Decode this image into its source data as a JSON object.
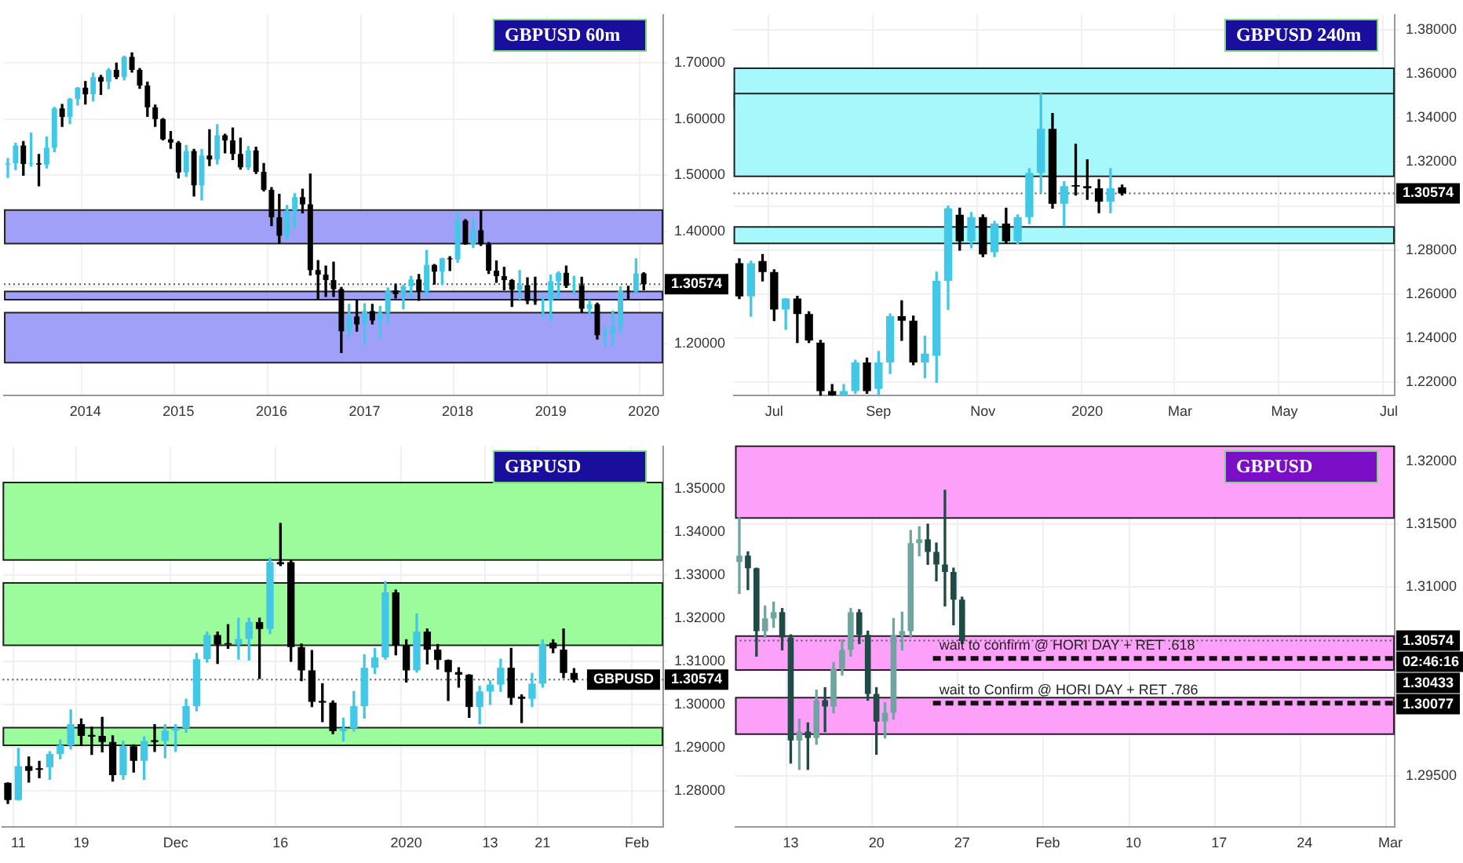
{
  "chart_data": [
    {
      "type": "candlestick",
      "title": "GBPUSD 60m",
      "grid": true,
      "categories": [
        null,
        null,
        null,
        null,
        null,
        null,
        null,
        null,
        null,
        null,
        "2014",
        null,
        null,
        null,
        null,
        null,
        null,
        null,
        null,
        null,
        null,
        null,
        "2015",
        null,
        null,
        null,
        null,
        null,
        null,
        null,
        null,
        null,
        null,
        null,
        "2016",
        null,
        null,
        null,
        null,
        null,
        null,
        null,
        null,
        null,
        null,
        null,
        "2017",
        null,
        null,
        null,
        null,
        null,
        null,
        null,
        null,
        null,
        null,
        null,
        "2018",
        null,
        null,
        null,
        null,
        null,
        null,
        null,
        null,
        null,
        null,
        null,
        "2019",
        null,
        null,
        null,
        null,
        null,
        null,
        null,
        null,
        null,
        null,
        null,
        "2020",
        null,
        null
      ],
      "ohlc": [
        [
          1.519,
          1.53,
          1.496,
          1.521
        ],
        [
          1.521,
          1.557,
          1.51,
          1.553
        ],
        [
          1.553,
          1.56,
          1.5,
          1.52
        ],
        [
          1.52,
          1.575,
          1.516,
          1.521
        ],
        [
          1.521,
          1.537,
          1.481,
          1.519
        ],
        [
          1.519,
          1.568,
          1.513,
          1.549
        ],
        [
          1.549,
          1.621,
          1.542,
          1.619
        ],
        [
          1.619,
          1.626,
          1.587,
          1.604
        ],
        [
          1.604,
          1.637,
          1.592,
          1.636
        ],
        [
          1.636,
          1.656,
          1.625,
          1.656
        ],
        [
          1.656,
          1.667,
          1.627,
          1.644
        ],
        [
          1.644,
          1.682,
          1.632,
          1.675
        ],
        [
          1.675,
          1.678,
          1.644,
          1.667
        ],
        [
          1.667,
          1.69,
          1.654,
          1.688
        ],
        [
          1.688,
          1.7,
          1.672,
          1.675
        ],
        [
          1.675,
          1.712,
          1.67,
          1.711
        ],
        [
          1.711,
          1.718,
          1.684,
          1.688
        ],
        [
          1.688,
          1.69,
          1.655,
          1.66
        ],
        [
          1.66,
          1.666,
          1.605,
          1.621
        ],
        [
          1.621,
          1.625,
          1.587,
          1.6
        ],
        [
          1.6,
          1.601,
          1.563,
          1.564
        ],
        [
          1.564,
          1.578,
          1.548,
          1.558
        ],
        [
          1.558,
          1.56,
          1.495,
          1.505
        ],
        [
          1.505,
          1.553,
          1.498,
          1.543
        ],
        [
          1.543,
          1.546,
          1.463,
          1.482
        ],
        [
          1.482,
          1.546,
          1.456,
          1.535
        ],
        [
          1.535,
          1.581,
          1.517,
          1.528
        ],
        [
          1.528,
          1.59,
          1.52,
          1.571
        ],
        [
          1.571,
          1.573,
          1.54,
          1.562
        ],
        [
          1.562,
          1.584,
          1.528,
          1.538
        ],
        [
          1.538,
          1.566,
          1.511,
          1.514
        ],
        [
          1.514,
          1.551,
          1.51,
          1.544
        ],
        [
          1.544,
          1.55,
          1.503,
          1.506
        ],
        [
          1.506,
          1.521,
          1.472,
          1.474
        ],
        [
          1.474,
          1.478,
          1.41,
          1.425
        ],
        [
          1.425,
          1.466,
          1.379,
          1.392
        ],
        [
          1.392,
          1.446,
          1.386,
          1.437
        ],
        [
          1.437,
          1.467,
          1.407,
          1.461
        ],
        [
          1.461,
          1.475,
          1.433,
          1.448
        ],
        [
          1.448,
          1.502,
          1.322,
          1.331
        ],
        [
          1.331,
          1.348,
          1.279,
          1.323
        ],
        [
          1.323,
          1.338,
          1.284,
          1.313
        ],
        [
          1.313,
          1.345,
          1.284,
          1.297
        ],
        [
          1.297,
          1.3,
          1.184,
          1.222
        ],
        [
          1.222,
          1.27,
          1.212,
          1.248
        ],
        [
          1.248,
          1.277,
          1.222,
          1.234
        ],
        [
          1.234,
          1.271,
          1.198,
          1.258
        ],
        [
          1.258,
          1.27,
          1.235,
          1.241
        ],
        [
          1.241,
          1.266,
          1.21,
          1.255
        ],
        [
          1.255,
          1.299,
          1.236,
          1.295
        ],
        [
          1.295,
          1.306,
          1.281,
          1.288
        ],
        [
          1.288,
          1.304,
          1.262,
          1.302
        ],
        [
          1.302,
          1.32,
          1.281,
          1.314
        ],
        [
          1.314,
          1.323,
          1.277,
          1.293
        ],
        [
          1.293,
          1.366,
          1.285,
          1.34
        ],
        [
          1.34,
          1.341,
          1.306,
          1.328
        ],
        [
          1.328,
          1.352,
          1.305,
          1.352
        ],
        [
          1.352,
          1.355,
          1.33,
          1.35
        ],
        [
          1.35,
          1.435,
          1.345,
          1.419
        ],
        [
          1.419,
          1.421,
          1.377,
          1.377
        ],
        [
          1.377,
          1.424,
          1.371,
          1.402
        ],
        [
          1.402,
          1.438,
          1.375,
          1.377
        ],
        [
          1.377,
          1.38,
          1.325,
          1.33
        ],
        [
          1.33,
          1.347,
          1.309,
          1.32
        ],
        [
          1.32,
          1.336,
          1.296,
          1.313
        ],
        [
          1.313,
          1.314,
          1.266,
          1.296
        ],
        [
          1.296,
          1.33,
          1.279,
          1.304
        ],
        [
          1.304,
          1.317,
          1.271,
          1.276
        ],
        [
          1.276,
          1.318,
          1.27,
          1.275
        ],
        [
          1.275,
          1.284,
          1.248,
          1.276
        ],
        [
          1.276,
          1.322,
          1.24,
          1.311
        ],
        [
          1.311,
          1.328,
          1.28,
          1.326
        ],
        [
          1.326,
          1.338,
          1.3,
          1.303
        ],
        [
          1.303,
          1.32,
          1.288,
          1.304
        ],
        [
          1.304,
          1.318,
          1.256,
          1.262
        ],
        [
          1.262,
          1.277,
          1.251,
          1.27
        ],
        [
          1.27,
          1.272,
          1.208,
          1.215
        ],
        [
          1.215,
          1.229,
          1.196,
          1.217
        ],
        [
          1.217,
          1.258,
          1.196,
          1.23
        ],
        [
          1.23,
          1.301,
          1.22,
          1.294
        ],
        [
          1.294,
          1.302,
          1.28,
          1.293
        ],
        [
          1.293,
          1.351,
          1.29,
          1.325
        ],
        [
          1.325,
          1.326,
          1.296,
          1.306
        ],
        null,
        null
      ],
      "colors": [
        "#42c8e6",
        "#42c8e6",
        "#000000",
        "#42c8e6",
        "#000000",
        "#42c8e6",
        "#42c8e6",
        "#000000",
        "#42c8e6",
        "#42c8e6",
        "#000000",
        "#42c8e6",
        "#000000",
        "#42c8e6",
        "#000000",
        "#42c8e6",
        "#000000",
        "#000000",
        "#000000",
        "#000000",
        "#000000",
        "#000000",
        "#000000",
        "#42c8e6",
        "#000000",
        "#42c8e6",
        "#000000",
        "#42c8e6",
        "#000000",
        "#000000",
        "#000000",
        "#42c8e6",
        "#000000",
        "#000000",
        "#000000",
        "#000000",
        "#42c8e6",
        "#42c8e6",
        "#000000",
        "#000000",
        "#000000",
        "#000000",
        "#000000",
        "#000000",
        "#42c8e6",
        "#000000",
        "#42c8e6",
        "#000000",
        "#42c8e6",
        "#42c8e6",
        "#000000",
        "#42c8e6",
        "#42c8e6",
        "#000000",
        "#42c8e6",
        "#000000",
        "#42c8e6",
        "#000000",
        "#42c8e6",
        "#000000",
        "#42c8e6",
        "#000000",
        "#000000",
        "#000000",
        "#000000",
        "#000000",
        "#42c8e6",
        "#000000",
        "#000000",
        "#42c8e6",
        "#42c8e6",
        "#42c8e6",
        "#000000",
        "#42c8e6",
        "#000000",
        "#42c8e6",
        "#000000",
        "#42c8e6",
        "#42c8e6",
        "#42c8e6",
        "#000000",
        "#42c8e6",
        "#000000",
        null,
        null
      ],
      "ylim": [
        1.107,
        1.786
      ],
      "yticks": [
        {
          "value": 1.2,
          "label": "1.20000"
        },
        {
          "value": 1.3,
          "label": null
        },
        {
          "value": 1.4,
          "label": "1.40000"
        },
        {
          "value": 1.5,
          "label": "1.50000"
        },
        {
          "value": 1.6,
          "label": "1.60000"
        },
        {
          "value": 1.7,
          "label": "1.70000"
        }
      ],
      "bands": [
        {
          "axis": "y",
          "from": 1.378,
          "to": 1.438,
          "color": "#a0a0f8"
        },
        {
          "axis": "y",
          "from": 1.278,
          "to": 1.293,
          "color": "#a0a0f8"
        },
        {
          "axis": "y",
          "from": 1.166,
          "to": 1.255,
          "color": "#a0a0f8"
        }
      ],
      "ref_lines": [
        {
          "axis": "y",
          "value": 1.30574,
          "line_style": "dotted"
        }
      ],
      "annotations": [
        {
          "text": "1.30574",
          "y": 1.30574
        }
      ]
    },
    {
      "type": "candlestick",
      "title": "GBPUSD 240m",
      "grid": true,
      "categories": [
        null,
        null,
        null,
        "Jul",
        null,
        null,
        null,
        null,
        null,
        null,
        null,
        null,
        "Sep",
        null,
        null,
        null,
        null,
        null,
        null,
        null,
        null,
        "Nov",
        null,
        null,
        null,
        null,
        null,
        null,
        null,
        null,
        "2020",
        null,
        null,
        null,
        null,
        null,
        null,
        null,
        "Mar",
        null,
        null,
        null,
        null,
        null,
        null,
        null,
        null,
        "May",
        null,
        null,
        null,
        null,
        null,
        null,
        null,
        null,
        "Jul"
      ],
      "ohlc": [
        [
          1.274,
          1.276,
          1.258,
          1.259
        ],
        [
          1.259,
          1.275,
          1.25,
          1.274
        ],
        [
          1.275,
          1.278,
          1.266,
          1.27
        ],
        [
          1.27,
          1.271,
          1.248,
          1.253
        ],
        [
          1.253,
          1.258,
          1.244,
          1.258
        ],
        [
          1.258,
          1.259,
          1.238,
          1.251
        ],
        [
          1.251,
          1.252,
          1.238,
          1.239
        ],
        [
          1.238,
          1.239,
          1.214,
          1.216
        ],
        [
          1.216,
          1.219,
          1.214,
          1.214
        ],
        [
          1.214,
          1.219,
          1.214,
          1.216
        ],
        [
          1.216,
          1.23,
          1.215,
          1.229
        ],
        [
          1.229,
          1.231,
          1.215,
          1.216
        ],
        [
          1.217,
          1.234,
          1.214,
          1.229
        ],
        [
          1.229,
          1.251,
          1.224,
          1.25
        ],
        [
          1.25,
          1.257,
          1.239,
          1.248
        ],
        [
          1.248,
          1.25,
          1.228,
          1.229
        ],
        [
          1.229,
          1.241,
          1.222,
          1.233
        ],
        [
          1.232,
          1.27,
          1.22,
          1.266
        ],
        [
          1.266,
          1.3,
          1.253,
          1.299
        ],
        [
          1.296,
          1.299,
          1.28,
          1.284
        ],
        [
          1.284,
          1.297,
          1.281,
          1.295
        ],
        [
          1.295,
          1.296,
          1.277,
          1.278
        ],
        [
          1.279,
          1.293,
          1.277,
          1.292
        ],
        [
          1.292,
          1.299,
          1.283,
          1.284
        ],
        [
          1.284,
          1.296,
          1.283,
          1.295
        ],
        [
          1.295,
          1.317,
          1.292,
          1.315
        ],
        [
          1.315,
          1.351,
          1.306,
          1.335
        ],
        [
          1.335,
          1.342,
          1.299,
          1.301
        ],
        [
          1.301,
          1.311,
          1.291,
          1.309
        ],
        [
          1.3095,
          1.328,
          1.305,
          1.3088
        ],
        [
          1.309,
          1.321,
          1.303,
          1.308
        ],
        [
          1.308,
          1.312,
          1.297,
          1.302
        ],
        [
          1.302,
          1.317,
          1.297,
          1.308
        ],
        [
          1.3085,
          1.3095,
          1.305,
          1.3057
        ],
        null,
        null,
        null,
        null,
        null,
        null,
        null,
        null,
        null,
        null,
        null,
        null,
        null,
        null,
        null,
        null,
        null,
        null,
        null,
        null,
        null,
        null,
        null
      ],
      "colors": [
        "#000000",
        "#42c8e6",
        "#000000",
        "#000000",
        "#42c8e6",
        "#000000",
        "#000000",
        "#000000",
        "#000000",
        "#42c8e6",
        "#42c8e6",
        "#000000",
        "#42c8e6",
        "#42c8e6",
        "#000000",
        "#000000",
        "#42c8e6",
        "#42c8e6",
        "#42c8e6",
        "#000000",
        "#42c8e6",
        "#000000",
        "#42c8e6",
        "#000000",
        "#42c8e6",
        "#42c8e6",
        "#42c8e6",
        "#000000",
        "#42c8e6",
        "#000000",
        "#000000",
        "#000000",
        "#42c8e6",
        "#000000",
        null,
        null,
        null,
        null,
        null,
        null,
        null,
        null,
        null,
        null,
        null,
        null,
        null,
        null,
        null,
        null,
        null,
        null,
        null,
        null,
        null,
        null,
        null
      ],
      "ylim": [
        1.2139,
        1.3868
      ],
      "yticks": [
        {
          "value": 1.22,
          "label": "1.22000"
        },
        {
          "value": 1.24,
          "label": "1.24000"
        },
        {
          "value": 1.26,
          "label": "1.26000"
        },
        {
          "value": 1.28,
          "label": "1.28000"
        },
        {
          "value": 1.3,
          "label": null
        },
        {
          "value": 1.32,
          "label": "1.32000"
        },
        {
          "value": 1.34,
          "label": "1.34000"
        },
        {
          "value": 1.36,
          "label": "1.36000"
        },
        {
          "value": 1.38,
          "label": "1.38000"
        }
      ],
      "bands": [
        {
          "axis": "y",
          "from": 1.3445,
          "to": 1.3625,
          "color": "#a6f8fb"
        },
        {
          "axis": "y",
          "from": 1.3135,
          "to": 1.351,
          "color": "#a6f8fb"
        },
        {
          "axis": "y",
          "from": 1.283,
          "to": 1.2905,
          "color": "#a6f8fb"
        }
      ],
      "ref_lines": [
        {
          "axis": "y",
          "value": 1.30574,
          "line_style": "dotted"
        }
      ],
      "annotations": [
        {
          "text": "1.30574",
          "y": 1.30574
        }
      ]
    },
    {
      "type": "candlestick",
      "title": "GBPUSD",
      "grid": true,
      "categories": [
        null,
        "11",
        null,
        null,
        null,
        null,
        null,
        "19",
        null,
        null,
        null,
        null,
        null,
        null,
        null,
        null,
        "Dec",
        null,
        null,
        null,
        null,
        null,
        null,
        null,
        null,
        null,
        "16",
        null,
        null,
        null,
        null,
        null,
        null,
        null,
        null,
        null,
        null,
        null,
        "2020",
        null,
        null,
        null,
        null,
        null,
        null,
        null,
        "13",
        null,
        null,
        null,
        null,
        "21",
        null,
        null,
        null,
        null,
        null,
        null,
        null,
        null,
        "Feb",
        null,
        null
      ],
      "ohlc": [
        [
          1.2818,
          1.2818,
          1.277,
          1.2778
        ],
        [
          1.2778,
          1.2898,
          1.2778,
          1.2857
        ],
        [
          1.2857,
          1.2878,
          1.282,
          1.2846
        ],
        [
          1.2852,
          1.2868,
          1.283,
          1.2848
        ],
        [
          1.2854,
          1.289,
          1.2826,
          1.2885
        ],
        [
          1.2885,
          1.2918,
          1.2874,
          1.2905
        ],
        [
          1.2905,
          1.2987,
          1.2897,
          1.2954
        ],
        [
          1.2954,
          1.2966,
          1.2905,
          1.2927
        ],
        [
          1.2929,
          1.2947,
          1.2884,
          1.2925
        ],
        [
          1.2927,
          1.297,
          1.289,
          1.2913
        ],
        [
          1.2913,
          1.2927,
          1.2822,
          1.2836
        ],
        [
          1.2836,
          1.2915,
          1.2826,
          1.2903
        ],
        [
          1.2903,
          1.2906,
          1.2843,
          1.2869
        ],
        [
          1.2869,
          1.2925,
          1.2826,
          1.2915
        ],
        [
          1.2917,
          1.2953,
          1.2891,
          1.2913
        ],
        [
          1.2915,
          1.2953,
          1.2876,
          1.2939
        ],
        [
          1.2939,
          1.2953,
          1.2891,
          1.2945
        ],
        [
          1.2945,
          1.3012,
          1.2935,
          1.2996
        ],
        [
          1.2996,
          1.3118,
          1.2985,
          1.3105
        ],
        [
          1.3105,
          1.3168,
          1.3098,
          1.3161
        ],
        [
          1.3161,
          1.3168,
          1.3095,
          1.3139
        ],
        [
          1.3142,
          1.3185,
          1.313,
          1.3139
        ],
        [
          1.3139,
          1.32,
          1.3105,
          1.3152
        ],
        [
          1.3152,
          1.32,
          1.3103,
          1.3191
        ],
        [
          1.3191,
          1.32,
          1.306,
          1.3175
        ],
        [
          1.3175,
          1.334,
          1.3164,
          1.333
        ],
        [
          1.333,
          1.342,
          1.3322,
          1.3325
        ],
        [
          1.333,
          1.3335,
          1.31,
          1.3133
        ],
        [
          1.3133,
          1.314,
          1.3055,
          1.3079
        ],
        [
          1.3079,
          1.3125,
          1.2995,
          1.3006
        ],
        [
          1.3008,
          1.3048,
          1.296,
          1.3004
        ],
        [
          1.3004,
          1.3008,
          1.2932,
          1.2938
        ],
        [
          1.2938,
          1.2968,
          1.2915,
          1.2945
        ],
        [
          1.2945,
          1.303,
          1.2938,
          1.2996
        ],
        [
          1.2996,
          1.3115,
          1.2968,
          1.3085
        ],
        [
          1.3085,
          1.313,
          1.3072,
          1.3109
        ],
        [
          1.3109,
          1.3285,
          1.3105,
          1.326
        ],
        [
          1.326,
          1.3265,
          1.3115,
          1.3137
        ],
        [
          1.3137,
          1.315,
          1.3052,
          1.3079
        ],
        [
          1.3079,
          1.321,
          1.3075,
          1.3169
        ],
        [
          1.3169,
          1.3175,
          1.3094,
          1.3127
        ],
        [
          1.3127,
          1.3139,
          1.3082,
          1.3103
        ],
        [
          1.3103,
          1.3103,
          1.3009,
          1.3075
        ],
        [
          1.3075,
          1.3085,
          1.304,
          1.3069
        ],
        [
          1.3069,
          1.3069,
          1.297,
          1.2994
        ],
        [
          1.2994,
          1.3042,
          1.2955,
          1.303
        ],
        [
          1.303,
          1.3055,
          1.3,
          1.3046
        ],
        [
          1.3046,
          1.3105,
          1.303,
          1.3085
        ],
        [
          1.3085,
          1.313,
          1.3,
          1.3015
        ],
        [
          1.3018,
          1.3022,
          1.2958,
          1.3013
        ],
        [
          1.3013,
          1.3072,
          1.2995,
          1.3048
        ],
        [
          1.3048,
          1.315,
          1.304,
          1.3139
        ],
        [
          1.3143,
          1.315,
          1.312,
          1.313
        ],
        [
          1.3127,
          1.3175,
          1.3062,
          1.3073
        ],
        [
          1.3073,
          1.3083,
          1.3052,
          1.3057
        ],
        null,
        null,
        null,
        null,
        null,
        null,
        null,
        null
      ],
      "colors": [
        "#000000",
        "#42c8e6",
        "#000000",
        "#000000",
        "#42c8e6",
        "#42c8e6",
        "#42c8e6",
        "#000000",
        "#000000",
        "#000000",
        "#000000",
        "#42c8e6",
        "#000000",
        "#42c8e6",
        "#000000",
        "#42c8e6",
        "#42c8e6",
        "#42c8e6",
        "#42c8e6",
        "#42c8e6",
        "#000000",
        "#000000",
        "#42c8e6",
        "#42c8e6",
        "#000000",
        "#42c8e6",
        "#000000",
        "#000000",
        "#000000",
        "#000000",
        "#000000",
        "#000000",
        "#42c8e6",
        "#42c8e6",
        "#42c8e6",
        "#42c8e6",
        "#42c8e6",
        "#000000",
        "#000000",
        "#42c8e6",
        "#000000",
        "#000000",
        "#000000",
        "#000000",
        "#000000",
        "#42c8e6",
        "#42c8e6",
        "#42c8e6",
        "#000000",
        "#000000",
        "#42c8e6",
        "#42c8e6",
        "#000000",
        "#000000",
        "#000000",
        null,
        null,
        null,
        null,
        null,
        null,
        null,
        null
      ],
      "ylim": [
        1.2715,
        1.3599
      ],
      "yticks": [
        {
          "value": 1.28,
          "label": "1.28000"
        },
        {
          "value": 1.29,
          "label": "1.29000"
        },
        {
          "value": 1.3,
          "label": "1.30000"
        },
        {
          "value": 1.31,
          "label": "1.31000"
        },
        {
          "value": 1.32,
          "label": "1.32000"
        },
        {
          "value": 1.33,
          "label": "1.33000"
        },
        {
          "value": 1.34,
          "label": "1.34000"
        },
        {
          "value": 1.35,
          "label": "1.35000"
        }
      ],
      "bands": [
        {
          "axis": "y",
          "from": 1.3335,
          "to": 1.3515,
          "color": "#9cfc9c"
        },
        {
          "axis": "y",
          "from": 1.3137,
          "to": 1.3282,
          "color": "#9cfc9c"
        },
        {
          "axis": "y",
          "from": 1.2905,
          "to": 1.2946,
          "color": "#9cfc9c"
        }
      ],
      "ref_lines": [
        {
          "axis": "y",
          "value": 1.30574,
          "label": "GBPUSD",
          "line_style": "dotted"
        }
      ],
      "annotations": [
        {
          "text": "1.30574",
          "y": 1.30574
        }
      ]
    },
    {
      "type": "candlestick",
      "title": "GBPUSD",
      "grid": true,
      "categories": [
        null,
        null,
        null,
        null,
        null,
        null,
        "13",
        null,
        null,
        null,
        null,
        null,
        null,
        null,
        null,
        null,
        "20",
        null,
        null,
        null,
        null,
        null,
        null,
        null,
        null,
        null,
        "27",
        null,
        null,
        null,
        null,
        null,
        null,
        null,
        null,
        null,
        "Feb",
        null,
        null,
        null,
        null,
        null,
        null,
        null,
        null,
        null,
        "10",
        null,
        null,
        null,
        null,
        null,
        null,
        null,
        null,
        null,
        "17",
        null,
        null,
        null,
        null,
        null,
        null,
        null,
        null,
        null,
        "24",
        null,
        null,
        null,
        null,
        null,
        null,
        null,
        null,
        null,
        "Mar"
      ],
      "ohlc": [
        [
          1.312,
          1.3155,
          1.3095,
          1.3125
        ],
        [
          1.3125,
          1.3128,
          1.3098,
          1.3115
        ],
        [
          1.3115,
          1.3115,
          1.3045,
          1.3065
        ],
        [
          1.3065,
          1.3085,
          1.306,
          1.3075
        ],
        [
          1.3075,
          1.3088,
          1.3068,
          1.308
        ],
        [
          1.308,
          1.3083,
          1.305,
          1.306
        ],
        [
          1.306,
          1.3062,
          1.296,
          1.2978
        ],
        [
          1.2978,
          1.2995,
          1.2955,
          1.2985
        ],
        [
          1.2985,
          1.2992,
          1.2955,
          1.298
        ],
        [
          1.298,
          1.3018,
          1.2975,
          1.301
        ],
        [
          1.301,
          1.302,
          1.2985,
          1.3005
        ],
        [
          1.3005,
          1.304,
          1.3,
          1.3035
        ],
        [
          1.3035,
          1.3058,
          1.303,
          1.305
        ],
        [
          1.305,
          1.3083,
          1.3045,
          1.308
        ],
        [
          1.308,
          1.3082,
          1.3055,
          1.3062
        ],
        [
          1.3062,
          1.3065,
          1.301,
          1.3015
        ],
        [
          1.3015,
          1.302,
          1.2967,
          1.2993
        ],
        [
          1.2993,
          1.3008,
          1.298,
          1.3
        ],
        [
          1.3,
          1.3075,
          1.2995,
          1.3062
        ],
        [
          1.3062,
          1.308,
          1.305,
          1.3065
        ],
        [
          1.3065,
          1.3145,
          1.306,
          1.3135
        ],
        [
          1.3135,
          1.3148,
          1.3125,
          1.3138
        ],
        [
          1.3138,
          1.315,
          1.3118,
          1.3128
        ],
        [
          1.3128,
          1.3135,
          1.3105,
          1.3118
        ],
        [
          1.3118,
          1.3177,
          1.3085,
          1.3112
        ],
        [
          1.3112,
          1.3115,
          1.307,
          1.309
        ],
        [
          1.309,
          1.3092,
          1.3055,
          1.3057
        ],
        null,
        null,
        null,
        null,
        null,
        null,
        null,
        null,
        null,
        null,
        null,
        null,
        null,
        null,
        null,
        null,
        null,
        null,
        null,
        null,
        null,
        null,
        null,
        null,
        null,
        null,
        null,
        null,
        null,
        null,
        null,
        null,
        null,
        null,
        null,
        null,
        null,
        null,
        null,
        null,
        null,
        null,
        null,
        null,
        null,
        null,
        null,
        null,
        null,
        null
      ],
      "colors": [
        "#6fa59f",
        "#1f4a46",
        "#1f4a46",
        "#6fa59f",
        "#6fa59f",
        "#1f4a46",
        "#1f4a46",
        "#6fa59f",
        "#1f4a46",
        "#6fa59f",
        "#1f4a46",
        "#6fa59f",
        "#6fa59f",
        "#6fa59f",
        "#1f4a46",
        "#1f4a46",
        "#1f4a46",
        "#6fa59f",
        "#6fa59f",
        "#6fa59f",
        "#6fa59f",
        "#6fa59f",
        "#1f4a46",
        "#1f4a46",
        "#1f4a46",
        "#1f4a46",
        "#1f4a46",
        null,
        null,
        null,
        null,
        null,
        null,
        null,
        null,
        null,
        null,
        null,
        null,
        null,
        null,
        null,
        null,
        null,
        null,
        null,
        null,
        null,
        null,
        null,
        null,
        null,
        null,
        null,
        null,
        null,
        null,
        null,
        null,
        null,
        null,
        null,
        null,
        null,
        null,
        null,
        null,
        null,
        null,
        null,
        null,
        null,
        null,
        null,
        null,
        null,
        null
      ],
      "ylim": [
        1.2909,
        1.3212
      ],
      "yticks": [
        {
          "value": 1.295,
          "label": "1.29500"
        },
        {
          "value": 1.3,
          "label": null
        },
        {
          "value": 1.305,
          "label": null
        },
        {
          "value": 1.31,
          "label": "1.31000"
        },
        {
          "value": 1.315,
          "label": "1.31500"
        },
        {
          "value": 1.32,
          "label": "1.32000"
        }
      ],
      "bands": [
        {
          "axis": "y",
          "from": 1.3155,
          "to": 1.3212,
          "color": "#fda0f9"
        },
        {
          "axis": "y",
          "from": 1.3034,
          "to": 1.3061,
          "color": "#fda0f9"
        },
        {
          "axis": "y",
          "from": 1.2983,
          "to": 1.3012,
          "color": "#fda0f9"
        }
      ],
      "ref_lines": [
        {
          "axis": "y",
          "value": 1.30574,
          "line_style": "dotted"
        },
        {
          "axis": "y",
          "value": 1.30433,
          "label": "wait to confirm @ HORI DAY + RET .618",
          "line_style": "dashed"
        },
        {
          "axis": "y",
          "value": 1.30077,
          "label": "wait to Confirm @ HORI DAY + RET .786",
          "line_style": "dashed"
        }
      ],
      "annotations": [
        {
          "text": "1.30574",
          "y": 1.30574
        },
        "02:46:16",
        "1.30433",
        {
          "text": "1.30077",
          "y": 1.30077
        }
      ]
    }
  ]
}
